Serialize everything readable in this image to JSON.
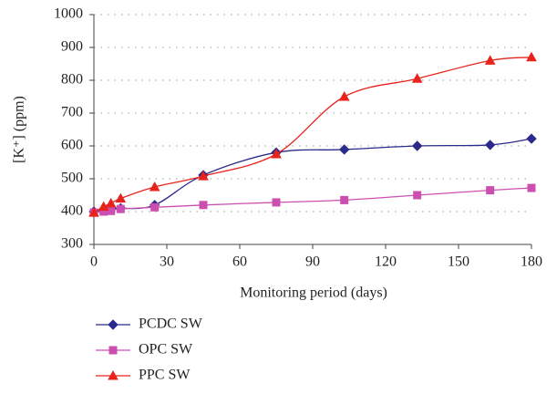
{
  "chart_data": {
    "type": "line",
    "x_label": "Monitoring period (days)",
    "y_label": "[K⁺] (ppm)",
    "x": [
      0,
      4,
      7,
      11,
      25,
      45,
      75,
      103,
      133,
      163,
      180
    ],
    "series": [
      {
        "name": "PCDC SW",
        "color": "#2b2a8c",
        "marker": "diamond",
        "values": [
          400,
          405,
          410,
          410,
          420,
          511,
          580,
          589,
          600,
          603,
          622
        ]
      },
      {
        "name": "OPC SW",
        "color": "#cc4fb0",
        "marker": "square",
        "values": [
          397,
          400,
          402,
          408,
          413,
          420,
          428,
          435,
          450,
          465,
          472
        ]
      },
      {
        "name": "PPC SW",
        "color": "#e8231c",
        "marker": "triangle",
        "values": [
          397,
          415,
          425,
          440,
          475,
          508,
          575,
          750,
          805,
          860,
          870
        ]
      }
    ],
    "xlim": [
      0,
      180
    ],
    "xticks": [
      0,
      30,
      60,
      90,
      120,
      150,
      180
    ],
    "ylim": [
      300,
      1000
    ],
    "yticks": [
      300,
      400,
      500,
      600,
      700,
      800,
      900,
      1000
    ],
    "grid": true,
    "smooth": true
  }
}
